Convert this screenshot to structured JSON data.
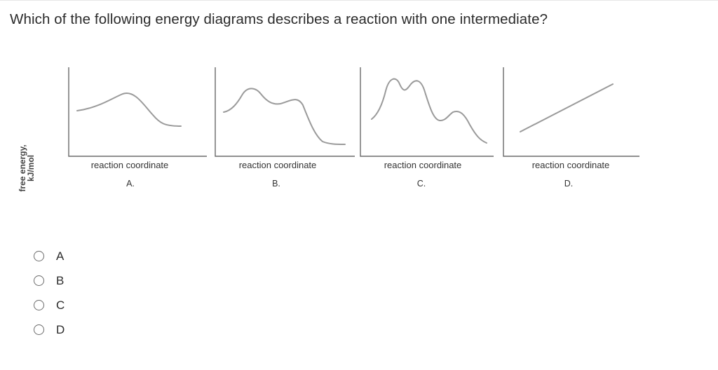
{
  "question": "Which of the following energy diagrams describes a reaction with one intermediate?",
  "figure": {
    "y_axis_label_line1": "free energy,",
    "y_axis_label_line2": "kJ/mol",
    "panels": [
      {
        "x_label": "reaction coordinate",
        "panel_label": "A."
      },
      {
        "x_label": "reaction coordinate",
        "panel_label": "B."
      },
      {
        "x_label": "reaction coordinate",
        "panel_label": "C."
      },
      {
        "x_label": "reaction coordinate",
        "panel_label": "D."
      }
    ]
  },
  "options": [
    {
      "label": "A"
    },
    {
      "label": "B"
    },
    {
      "label": "C"
    },
    {
      "label": "D"
    }
  ]
}
